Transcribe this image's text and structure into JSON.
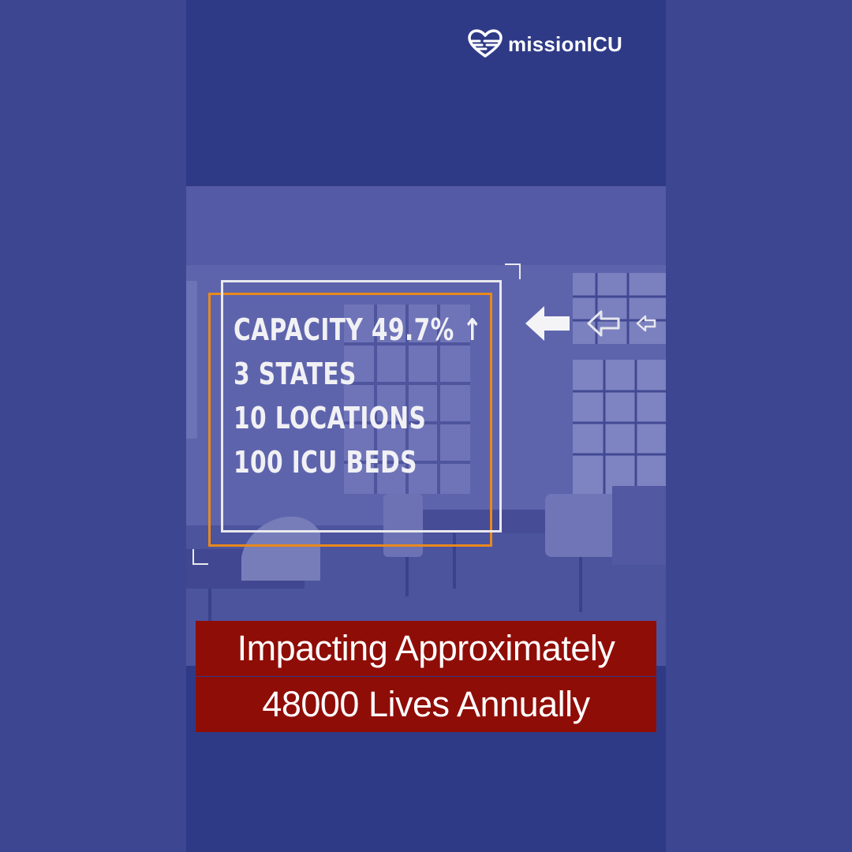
{
  "brand": {
    "name": "missionICU",
    "logo_icon": "heart-pulse-icon"
  },
  "stats": [
    "CAPACITY 49.7% ↑",
    "3 STATES",
    "10 LOCATIONS",
    "100 ICU BEDS"
  ],
  "caption": {
    "line1": "Impacting Approximately",
    "line2": "48000 Lives Annually"
  },
  "colors": {
    "background": "#3d4791",
    "panel": "#2f3a87",
    "frame_orange": "#e8891c",
    "caption_bg": "#8f0d07"
  }
}
